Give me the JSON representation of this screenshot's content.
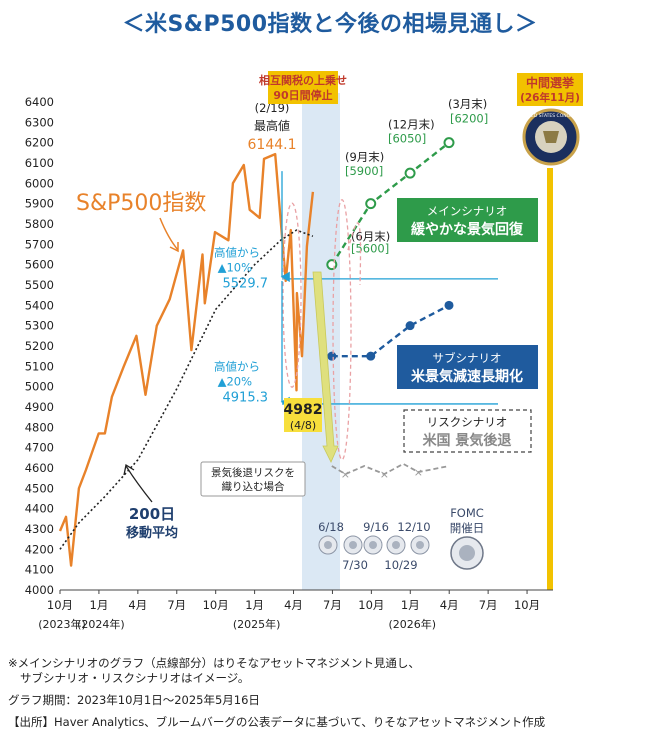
{
  "title": "＜米S&P500指数と今後の相場見通し＞",
  "chart_data": {
    "type": "line",
    "ylim": [
      4000,
      6400
    ],
    "yticks": [
      4000,
      4100,
      4200,
      4300,
      4400,
      4500,
      4600,
      4700,
      4800,
      4900,
      5000,
      5100,
      5200,
      5300,
      5400,
      5500,
      5600,
      5700,
      5800,
      5900,
      6000,
      6100,
      6200,
      6300,
      6400
    ],
    "xlim": [
      "2023-10",
      "2026-12"
    ],
    "xticks": [
      {
        "x": "2023-10",
        "label": "10月"
      },
      {
        "x": "2024-01",
        "label": "1月"
      },
      {
        "x": "2024-04",
        "label": "4月"
      },
      {
        "x": "2024-07",
        "label": "7月"
      },
      {
        "x": "2024-10",
        "label": "10月"
      },
      {
        "x": "2025-01",
        "label": "1月"
      },
      {
        "x": "2025-04",
        "label": "4月"
      },
      {
        "x": "2025-07",
        "label": "7月"
      },
      {
        "x": "2025-10",
        "label": "10月"
      },
      {
        "x": "2026-01",
        "label": "1月"
      },
      {
        "x": "2026-04",
        "label": "4月"
      },
      {
        "x": "2026-07",
        "label": "7月"
      },
      {
        "x": "2026-10",
        "label": "10月"
      }
    ],
    "year_labels": [
      {
        "x": "2023-10",
        "label": "(2023年)"
      },
      {
        "x": "2024-01",
        "label": "(2024年)"
      },
      {
        "x": "2025-01",
        "label": "(2025年)"
      },
      {
        "x": "2026-01",
        "label": "(2026年)"
      }
    ],
    "series": [
      {
        "name": "S&P500指数",
        "color": "#e8822a",
        "style": "solid",
        "points": [
          [
            "2023-10-01",
            4290
          ],
          [
            "2023-10-15",
            4360
          ],
          [
            "2023-10-27",
            4120
          ],
          [
            "2023-11-15",
            4500
          ],
          [
            "2023-12-01",
            4590
          ],
          [
            "2023-12-31",
            4770
          ],
          [
            "2024-01-15",
            4770
          ],
          [
            "2024-02-01",
            4950
          ],
          [
            "2024-02-29",
            5100
          ],
          [
            "2024-03-28",
            5250
          ],
          [
            "2024-04-19",
            4960
          ],
          [
            "2024-05-15",
            5300
          ],
          [
            "2024-06-15",
            5430
          ],
          [
            "2024-07-16",
            5670
          ],
          [
            "2024-08-05",
            5180
          ],
          [
            "2024-08-31",
            5650
          ],
          [
            "2024-09-06",
            5410
          ],
          [
            "2024-09-30",
            5760
          ],
          [
            "2024-10-31",
            5720
          ],
          [
            "2024-11-11",
            6000
          ],
          [
            "2024-12-06",
            6090
          ],
          [
            "2024-12-20",
            5870
          ],
          [
            "2025-01-13",
            5830
          ],
          [
            "2025-01-23",
            6120
          ],
          [
            "2025-02-19",
            6144
          ],
          [
            "2025-03-13",
            5520
          ],
          [
            "2025-03-25",
            5770
          ],
          [
            "2025-04-08",
            4982
          ],
          [
            "2025-04-09",
            5460
          ],
          [
            "2025-04-21",
            5150
          ],
          [
            "2025-05-02",
            5690
          ],
          [
            "2025-05-16",
            5958
          ]
        ]
      },
      {
        "name": "200日移動平均",
        "color": "#222222",
        "style": "dotted",
        "points": [
          [
            "2023-10-01",
            4200
          ],
          [
            "2023-11-15",
            4330
          ],
          [
            "2024-01-15",
            4460
          ],
          [
            "2024-04-01",
            4640
          ],
          [
            "2024-07-01",
            4990
          ],
          [
            "2024-10-01",
            5380
          ],
          [
            "2025-01-01",
            5600
          ],
          [
            "2025-03-01",
            5720
          ],
          [
            "2025-04-08",
            5770
          ],
          [
            "2025-05-16",
            5740
          ]
        ]
      }
    ],
    "scenarios": [
      {
        "name": "メインシナリオ",
        "color": "#2e9b4a",
        "points": [
          [
            "2025-06-30",
            5600
          ],
          [
            "2025-09-30",
            5900
          ],
          [
            "2025-12-31",
            6050
          ],
          [
            "2026-03-31",
            6200
          ]
        ],
        "labels": [
          "(6月末)",
          "[5600]",
          "(9月末)",
          "[5900]",
          "(12月末)",
          "[6050]",
          "(3月末)",
          "[6200]"
        ]
      },
      {
        "name": "サブシナリオ",
        "color": "#1f5b9e",
        "points": [
          [
            "2025-06-30",
            5150
          ],
          [
            "2025-09-30",
            5150
          ],
          [
            "2025-12-31",
            5300
          ],
          [
            "2026-03-31",
            5400
          ]
        ]
      },
      {
        "name": "リスクシナリオ",
        "color": "#999999",
        "points": [
          [
            "2025-06-30",
            4610
          ],
          [
            "2025-08-01",
            4570
          ],
          [
            "2025-09-15",
            4610
          ],
          [
            "2025-11-01",
            4570
          ],
          [
            "2025-12-15",
            4620
          ],
          [
            "2026-01-20",
            4580
          ],
          [
            "2026-03-31",
            4610
          ]
        ]
      }
    ],
    "hlines": [
      5530,
      4915
    ],
    "peak": {
      "date_label": "(2/19)",
      "label": "最高値",
      "value": "6144.1"
    },
    "trough": {
      "value": "4982",
      "date_label": "(4/8)"
    },
    "drawdowns": [
      {
        "text1": "高値から",
        "text2": "▲10%",
        "text3": "5529.7"
      },
      {
        "text1": "高値から",
        "text2": "▲20%",
        "text3": "4915.3"
      }
    ],
    "label_sp500": "S&P500指数",
    "label_ma_1": "200日",
    "label_ma_2": "移動平均",
    "tariff_box": [
      "相互関税の上乗せ",
      "90日間停止"
    ],
    "election": [
      "中間選挙",
      "(26年11月)"
    ],
    "main_box": [
      "メインシナリオ",
      "緩やかな景気回復"
    ],
    "sub_box": [
      "サブシナリオ",
      "米景気減速長期化"
    ],
    "risk_box": [
      "リスクシナリオ",
      "米国 景気後退"
    ],
    "recession_note": [
      "景気後退リスクを",
      "織り込む場合"
    ],
    "fomc_label": [
      "FOMC",
      "開催日"
    ],
    "fomc_dates_top": [
      "6/18",
      "9/16",
      "12/10"
    ],
    "fomc_dates_bottom": [
      "7/30",
      "10/29"
    ],
    "seal_text": "UNITED STATES CONGRESS"
  },
  "notes": {
    "line1": "※メインシナリオのグラフ（点線部分）はりそなアセットマネジメント見通し、",
    "line2": "サブシナリオ・リスクシナリオはイメージ。",
    "period": "グラフ期間：2023年10月1日～2025年5月16日",
    "source": "【出所】Haver Analytics、ブルームバーグの公表データに基づいて、りそなアセットマネジメント作成"
  },
  "colors": {
    "title": "#1f5b9e",
    "orange": "#e8822a",
    "green": "#2e9b4a",
    "blue": "#1f5b9e",
    "cyan": "#21a0d6",
    "gold": "#f2c200",
    "shade": "#dbe8f4"
  }
}
